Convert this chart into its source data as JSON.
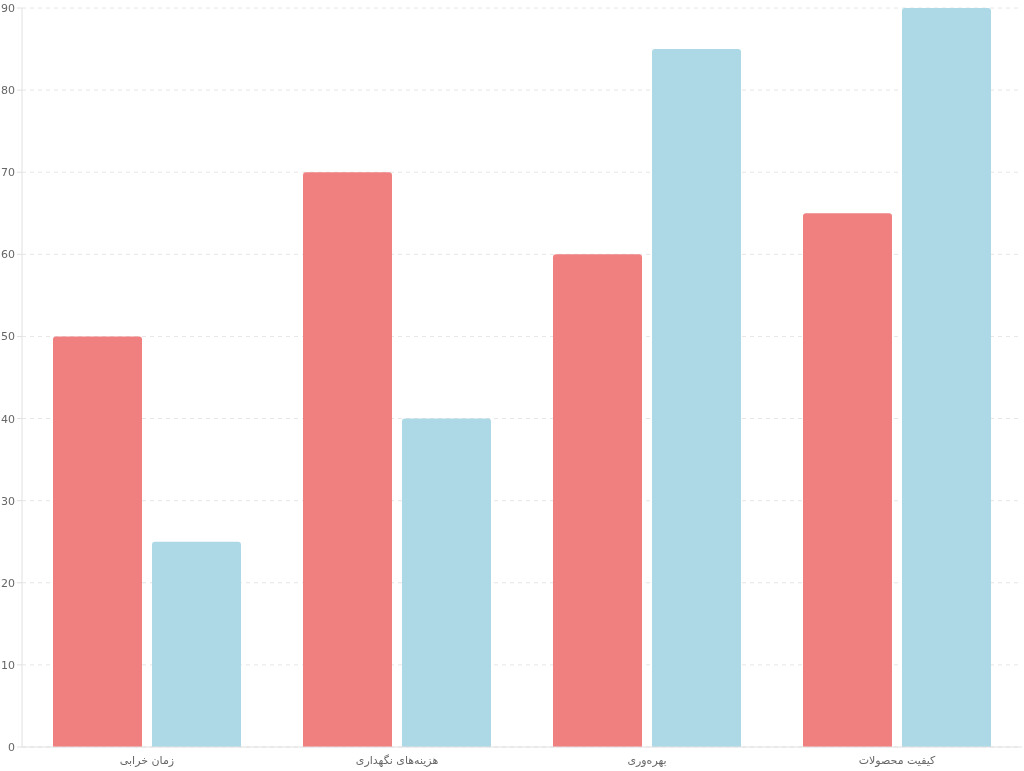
{
  "chart_data": {
    "type": "bar",
    "categories": [
      "زمان خرابی",
      "هزینه‌های نگهداری",
      "بهره‌وری",
      "کیفیت محصولات"
    ],
    "series": [
      {
        "color": "#f08080",
        "values": [
          50,
          70,
          60,
          65
        ]
      },
      {
        "color": "#add8e6",
        "values": [
          25,
          40,
          85,
          90
        ]
      }
    ],
    "ylim": [
      0,
      90
    ],
    "yticks": [
      0,
      10,
      20,
      30,
      40,
      50,
      60,
      70,
      80,
      90
    ],
    "grid": "y"
  }
}
